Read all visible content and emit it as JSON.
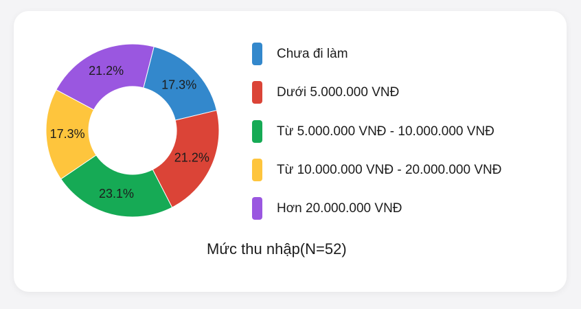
{
  "chart_data": {
    "type": "pie",
    "title": "Mức thu nhập(N=52)",
    "categories": [
      "Chưa đi làm",
      "Dưới 5.000.000 VNĐ",
      "Từ 5.000.000 VNĐ - 10.000.000 VNĐ",
      "Từ 10.000.000 VNĐ - 20.000.000 VNĐ",
      "Hơn 20.000.000 VNĐ"
    ],
    "values": [
      17.3,
      21.2,
      23.1,
      17.3,
      21.2
    ],
    "data_labels": [
      "17.3%",
      "21.2%",
      "23.1%",
      "17.3%",
      "21.2%"
    ],
    "colors": [
      "#3388cc",
      "#db4437",
      "#16aa55",
      "#fec53d",
      "#9a57e0"
    ],
    "legend_position": "right"
  }
}
